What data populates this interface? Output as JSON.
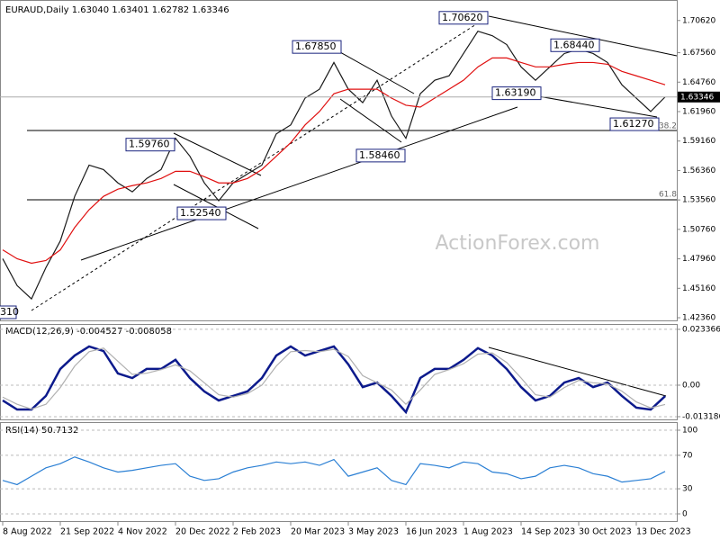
{
  "chart_data": [
    {
      "type": "line",
      "title": "EURAUD,Daily  1.63040 1.63401 1.62782 1.63346",
      "categories": [
        "8 Aug 2022",
        null,
        null,
        null,
        "21 Sep 2022",
        null,
        null,
        null,
        "4 Nov 2022",
        null,
        null,
        null,
        "20 Dec 2022",
        null,
        null,
        null,
        "2 Feb 2023",
        null,
        null,
        null,
        "20 Mar 2023",
        null,
        null,
        null,
        "3 May 2023",
        null,
        null,
        null,
        "16 Jun 2023",
        null,
        null,
        null,
        "1 Aug 2023",
        null,
        null,
        null,
        "14 Sep 2023",
        null,
        null,
        null,
        "30 Oct 2023",
        null,
        null,
        null,
        "13 Dec 2023",
        null,
        null
      ],
      "series": [
        {
          "name": "Close",
          "color": "#1a1a1a",
          "values": [
            1.4797,
            1.4542,
            1.4415,
            1.4712,
            1.4966,
            1.539,
            1.5687,
            1.5645,
            1.5518,
            1.5433,
            1.556,
            1.5645,
            1.5942,
            1.5772,
            1.5518,
            1.5348,
            1.5518,
            1.5603,
            1.5687,
            1.5984,
            1.6069,
            1.6324,
            1.6409,
            1.6663,
            1.6409,
            1.6281,
            1.6494,
            1.6154,
            1.5942,
            1.6366,
            1.6494,
            1.6536,
            1.6748,
            1.696,
            1.6918,
            1.6833,
            1.6621,
            1.6494,
            1.6621,
            1.6748,
            1.679,
            1.6748,
            1.6663,
            1.6451,
            1.6324,
            1.6197,
            1.6335
          ]
        },
        {
          "name": "MA",
          "color": "#e01010",
          "values": [
            1.4881,
            1.4797,
            1.4754,
            1.478,
            1.4881,
            1.5094,
            1.5263,
            1.539,
            1.5458,
            1.5492,
            1.5518,
            1.556,
            1.5628,
            1.5628,
            1.5577,
            1.5518,
            1.5518,
            1.556,
            1.5645,
            1.5772,
            1.59,
            1.6069,
            1.6197,
            1.6366,
            1.6409,
            1.6409,
            1.6409,
            1.6324,
            1.6256,
            1.6239,
            1.6324,
            1.6409,
            1.6494,
            1.6621,
            1.6706,
            1.6706,
            1.6663,
            1.6621,
            1.6621,
            1.6646,
            1.6663,
            1.6663,
            1.6646,
            1.6578,
            1.6536,
            1.6494,
            1.6451
          ]
        }
      ],
      "ylim": [
        1.4202,
        1.7257
      ],
      "yticks": [
        {
          "value": 1.7062,
          "label": "1.70620"
        },
        {
          "value": 1.6756,
          "label": "1.67560"
        },
        {
          "value": 1.6476,
          "label": "1.64760"
        },
        {
          "value": 1.6196,
          "label": "1.61960"
        },
        {
          "value": 1.5916,
          "label": "1.59160"
        },
        {
          "value": 1.5636,
          "label": "1.56360"
        },
        {
          "value": 1.5356,
          "label": "1.53560"
        },
        {
          "value": 1.5076,
          "label": "1.50760"
        },
        {
          "value": 1.4796,
          "label": "1.47960"
        },
        {
          "value": 1.4516,
          "label": "1.45160"
        },
        {
          "value": 1.4236,
          "label": "1.42360"
        }
      ],
      "last_price": {
        "value": 1.63346,
        "label": "1.63346"
      },
      "annotations": [
        {
          "value": 1.7062,
          "label": "1.70620"
        },
        {
          "value": 1.6785,
          "label": "1.67850"
        },
        {
          "value": 1.6844,
          "label": "1.68440"
        },
        {
          "value": 1.6319,
          "label": "1.63190"
        },
        {
          "value": 1.6127,
          "label": "1.61270"
        },
        {
          "value": 1.5976,
          "label": "1.59760"
        },
        {
          "value": 1.5846,
          "label": "1.58460"
        },
        {
          "value": 1.5254,
          "label": "1.52540"
        }
      ],
      "edge_label": "310",
      "fib_labels": [
        "38.2",
        "61.8"
      ],
      "watermark": "ActionForex.com"
    },
    {
      "type": "line",
      "title": "MACD(12,26,9) -0.004527 -0.008058",
      "series": [
        {
          "name": "MACD",
          "color": "#0c1a8c",
          "values": [
            -0.0064,
            -0.0102,
            -0.0102,
            -0.0045,
            0.0068,
            0.0124,
            0.0162,
            0.0143,
            0.0049,
            0.003,
            0.0068,
            0.0068,
            0.0106,
            0.003,
            -0.0026,
            -0.0064,
            -0.0045,
            -0.0026,
            0.003,
            0.0124,
            0.0162,
            0.0124,
            0.0143,
            0.0162,
            0.0087,
            -0.0008,
            0.0011,
            -0.0045,
            -0.0113,
            0.003,
            0.0068,
            0.0068,
            0.0106,
            0.0155,
            0.0124,
            0.0068,
            -0.0008,
            -0.0064,
            -0.0045,
            0.0011,
            0.003,
            -0.0008,
            0.0011,
            -0.0045,
            -0.0094,
            -0.0102,
            -0.0046
          ]
        },
        {
          "name": "Signal",
          "color": "#b0b0b0",
          "values": [
            -0.005,
            -0.008,
            -0.01,
            -0.008,
            -0.001,
            0.008,
            0.014,
            0.0155,
            0.01,
            0.0045,
            0.005,
            0.0065,
            0.0085,
            0.006,
            0.001,
            -0.004,
            -0.005,
            -0.0035,
            0.0,
            0.008,
            0.014,
            0.0145,
            0.014,
            0.015,
            0.012,
            0.004,
            0.001,
            -0.002,
            -0.008,
            -0.002,
            0.0045,
            0.0065,
            0.009,
            0.013,
            0.0135,
            0.0095,
            0.003,
            -0.004,
            -0.005,
            -0.001,
            0.002,
            0.001,
            0.0005,
            -0.0025,
            -0.007,
            -0.0095,
            -0.0081
          ]
        }
      ],
      "ylim": [
        -0.0147,
        0.0256
      ],
      "yticks": [
        0.023366,
        {
          "value": 0,
          "label": "0.00"
        },
        -0.013186
      ]
    },
    {
      "type": "line",
      "title": "RSI(14) 50.7132",
      "series": [
        {
          "name": "RSI",
          "color": "#2a7fd4",
          "values": [
            40,
            35,
            45,
            55,
            60,
            68,
            62,
            55,
            50,
            52,
            55,
            58,
            60,
            45,
            40,
            42,
            50,
            55,
            58,
            62,
            60,
            62,
            58,
            65,
            45,
            50,
            55,
            40,
            35,
            60,
            58,
            55,
            62,
            60,
            50,
            48,
            42,
            45,
            55,
            58,
            55,
            48,
            45,
            38,
            40,
            42,
            50.7132
          ]
        }
      ],
      "ylim": [
        -9.7,
        108.6
      ],
      "yticks": [
        100,
        70,
        30,
        0
      ]
    }
  ]
}
